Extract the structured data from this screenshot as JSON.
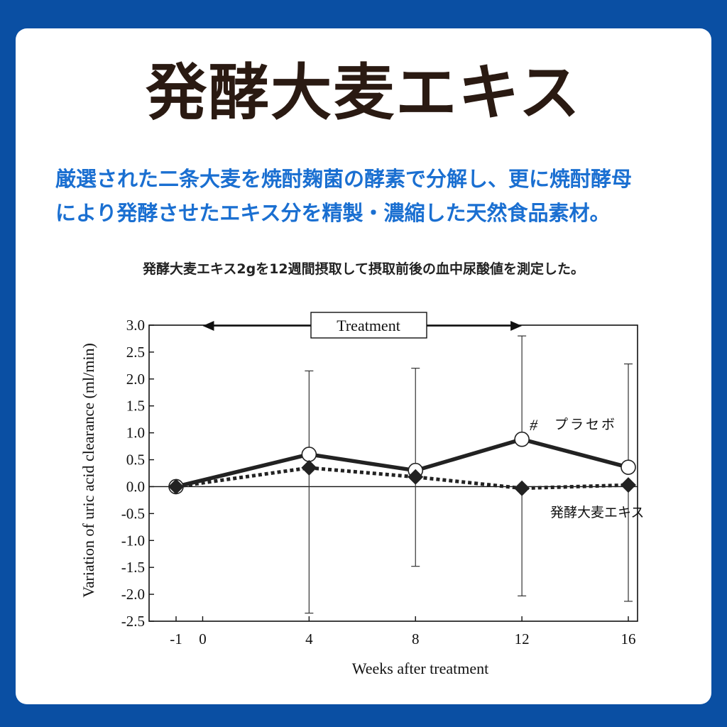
{
  "header": {
    "title": "発酵大麦エキス",
    "description_lines": [
      "厳選された二条大麦を焼酎麹菌の酵素で分解し、更に焼酎酵母",
      "により発酵させたエキス分を精製・濃縮した天然食品素材。"
    ],
    "note": "発酵大麦エキス2gを12週間摂取して摂取前後の血中尿酸値を測定した。"
  },
  "colors": {
    "frame": "#0a4fa3",
    "title": "#2a1a12",
    "description": "#1a6fd1"
  },
  "chart_data": {
    "type": "line",
    "xlabel": "Weeks after treatment",
    "ylabel": "Variation of uric acid clearance (ml/min)",
    "x_ticks": [
      "-1",
      "0",
      "4",
      "8",
      "12",
      "16"
    ],
    "y_ticks": [
      "3.0",
      "2.5",
      "2.0",
      "1.5",
      "1.0",
      "0.5",
      "0.0",
      "-0.5",
      "-1.0",
      "-1.5",
      "-2.0",
      "-2.5"
    ],
    "xlim": [
      -2,
      17
    ],
    "ylim": [
      -2.5,
      3.0
    ],
    "treatment_label": "Treatment",
    "treatment_range": [
      0,
      12
    ],
    "zero_line": true,
    "series": [
      {
        "name": "プラセボ",
        "marker": "open-circle",
        "line": "solid",
        "x": [
          -1,
          4,
          8,
          12,
          16
        ],
        "y": [
          0.0,
          0.6,
          0.3,
          0.88,
          0.36
        ],
        "error_upper": [
          null,
          2.15,
          2.2,
          2.8,
          2.28
        ],
        "error_lower": [
          null,
          null,
          null,
          null,
          null
        ]
      },
      {
        "name": "発酵大麦エキス",
        "marker": "filled-diamond",
        "line": "dotted",
        "x": [
          -1,
          4,
          8,
          12,
          16
        ],
        "y": [
          0.0,
          0.35,
          0.18,
          -0.03,
          0.03
        ],
        "error_upper": [
          null,
          null,
          null,
          null,
          null
        ],
        "error_lower": [
          null,
          -2.35,
          -1.48,
          -2.03,
          -2.13
        ]
      }
    ],
    "annotations": [
      {
        "text": "#",
        "x": 12,
        "y": 1.15
      }
    ]
  }
}
